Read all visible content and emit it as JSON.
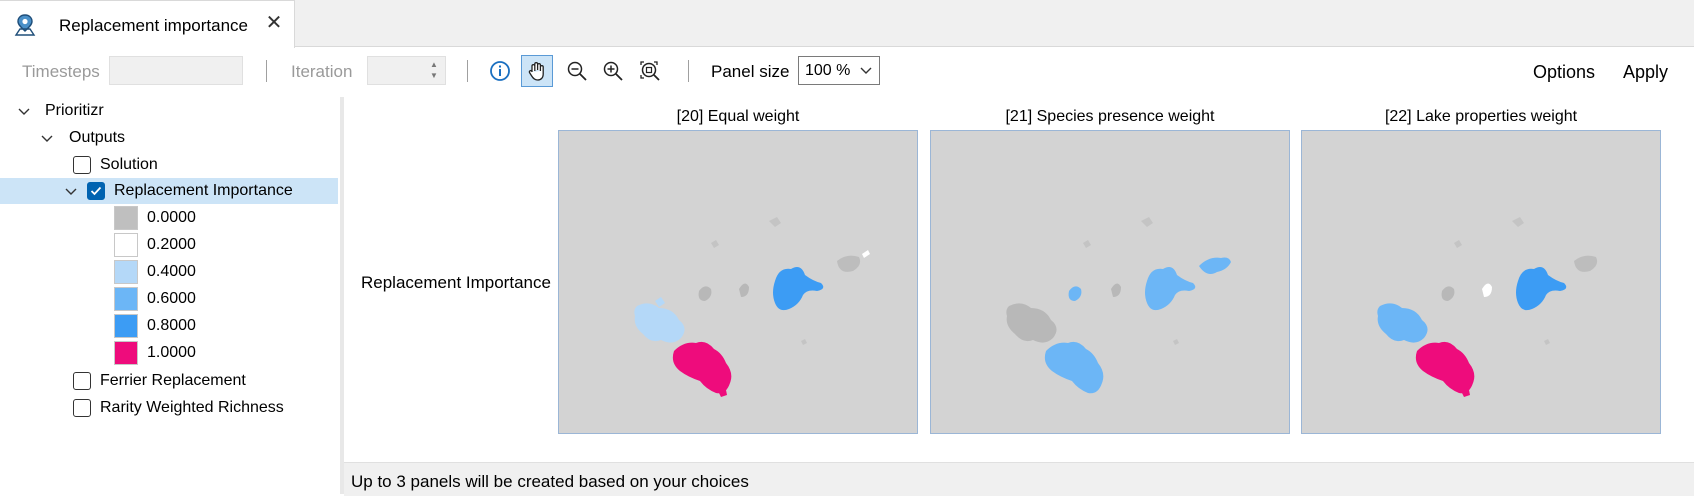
{
  "tab": {
    "title": "Replacement importance",
    "close_symbol": "✕",
    "icon": "map-pin-icon"
  },
  "toolbar": {
    "timesteps_label": "Timesteps",
    "timesteps_value": "",
    "iteration_label": "Iteration",
    "iteration_value": "",
    "icons": [
      "info-icon",
      "pan-hand-icon",
      "zoom-out-icon",
      "zoom-in-icon",
      "zoom-extent-icon"
    ],
    "pan_active": true,
    "panel_size_label": "Panel size",
    "panel_size_value": "100 %",
    "options_label": "Options",
    "apply_label": "Apply"
  },
  "tree": {
    "root_label": "Prioritizr",
    "outputs_label": "Outputs",
    "items": [
      {
        "label": "Solution",
        "checked": false
      },
      {
        "label": "Replacement Importance",
        "checked": true,
        "selected": true
      },
      {
        "label": "Ferrier Replacement",
        "checked": false
      },
      {
        "label": "Rarity Weighted Richness",
        "checked": false
      }
    ],
    "legend": [
      {
        "value": "0.0000",
        "color": "#bfbfbf"
      },
      {
        "value": "0.2000",
        "color": "#ffffff"
      },
      {
        "value": "0.4000",
        "color": "#b4d8f8"
      },
      {
        "value": "0.6000",
        "color": "#6cb6f6"
      },
      {
        "value": "0.8000",
        "color": "#3c9cf4"
      },
      {
        "value": "1.0000",
        "color": "#ee0c7c"
      }
    ]
  },
  "main": {
    "row_label": "Replacement Importance",
    "panels": [
      {
        "title": "[20] Equal weight"
      },
      {
        "title": "[21] Species presence weight"
      },
      {
        "title": "[22] Lake properties weight"
      }
    ]
  },
  "status": {
    "text": "Up to 3 panels will be created based on your choices"
  },
  "colors": {
    "accent": "#0063b1",
    "selection": "#cce4f7",
    "map_background": "#d3d3d3"
  }
}
